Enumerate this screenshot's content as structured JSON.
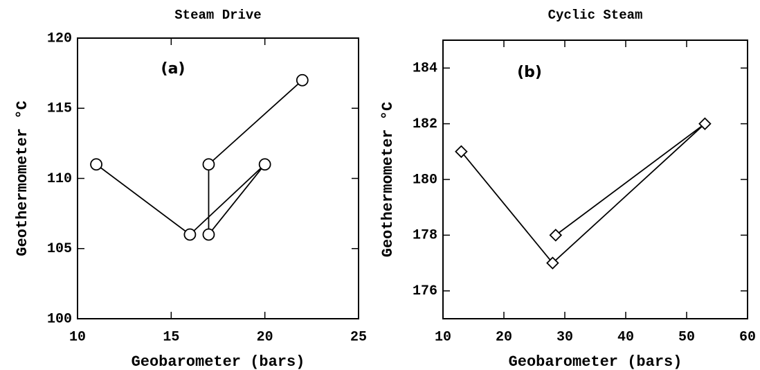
{
  "chart_data": [
    {
      "type": "line",
      "title": "Steam Drive",
      "annotation": "(a)",
      "x_label": "Geobarometer (bars)",
      "y_label": "Geothermometer °C",
      "x": [
        11,
        16,
        20,
        17,
        17,
        22
      ],
      "values": [
        111,
        106,
        111,
        106,
        111,
        117
      ],
      "marker": "circle",
      "color": "#000000",
      "xlim": [
        10,
        25
      ],
      "xticks": [
        10,
        15,
        20,
        25
      ],
      "ylim": [
        100,
        120
      ],
      "yticks": [
        100,
        105,
        110,
        115,
        120
      ]
    },
    {
      "type": "line",
      "title": "Cyclic Steam",
      "annotation": "(b)",
      "x_label": "Geobarometer (bars)",
      "y_label": "Geothermometer °C",
      "x": [
        13,
        28,
        53,
        28.5
      ],
      "values": [
        181,
        177,
        182,
        178
      ],
      "marker": "diamond",
      "color": "#000000",
      "xlim": [
        10,
        60
      ],
      "xticks": [
        10,
        20,
        30,
        40,
        50,
        60
      ],
      "ylim": [
        175,
        185
      ],
      "yticks": [
        176,
        178,
        180,
        182,
        184
      ]
    }
  ]
}
